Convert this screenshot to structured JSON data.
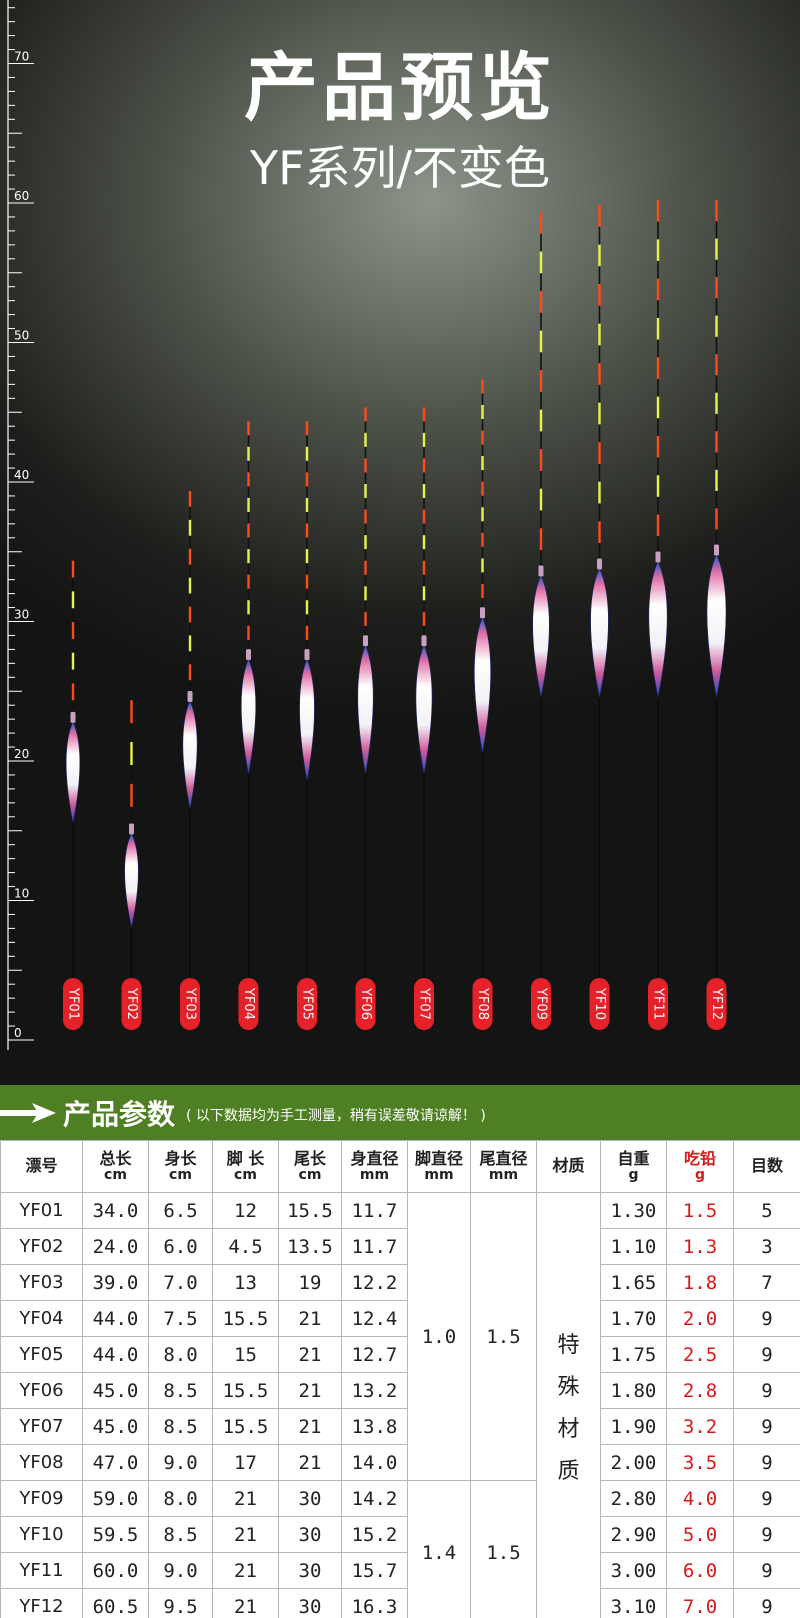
{
  "preview": {
    "title": "产品预览",
    "subtitle": "YF系列/不变色",
    "ruler_labels": [
      "0",
      "10",
      "20",
      "30",
      "40",
      "50",
      "60",
      "70"
    ],
    "floats": [
      {
        "code": "YF01",
        "total_cm": 34.0
      },
      {
        "code": "YF02",
        "total_cm": 24.0
      },
      {
        "code": "YF03",
        "total_cm": 39.0
      },
      {
        "code": "YF04",
        "total_cm": 44.0
      },
      {
        "code": "YF05",
        "total_cm": 44.0
      },
      {
        "code": "YF06",
        "total_cm": 45.0
      },
      {
        "code": "YF07",
        "total_cm": 45.0
      },
      {
        "code": "YF08",
        "total_cm": 47.0
      },
      {
        "code": "YF09",
        "total_cm": 59.0
      },
      {
        "code": "YF10",
        "total_cm": 59.5
      },
      {
        "code": "YF11",
        "total_cm": 60.0
      },
      {
        "code": "YF12",
        "total_cm": 60.5
      }
    ],
    "colors": {
      "tip_red": "#ff4a1c",
      "tip_yellow": "#e6f34a",
      "tag_red": "#e5212a",
      "body_blue": "#2b56c8",
      "body_pink": "#e06fa6"
    }
  },
  "banner": {
    "title": "产品参数",
    "note": "( 以下数据均为手工测量，稍有误差敬请谅解！ )",
    "color": "#4e7f22"
  },
  "table": {
    "headers": [
      {
        "name": "漂号",
        "unit": ""
      },
      {
        "name": "总长",
        "unit": "cm"
      },
      {
        "name": "身长",
        "unit": "cm"
      },
      {
        "name": "脚 长",
        "unit": "cm"
      },
      {
        "name": "尾长",
        "unit": "cm"
      },
      {
        "name": "身直径",
        "unit": "mm"
      },
      {
        "name": "脚直径",
        "unit": "mm"
      },
      {
        "name": "尾直径",
        "unit": "mm"
      },
      {
        "name": "材质",
        "unit": ""
      },
      {
        "name": "自重",
        "unit": "g"
      },
      {
        "name": "吃铅",
        "unit": "g"
      },
      {
        "name": "目数",
        "unit": ""
      }
    ],
    "rows": [
      {
        "code": "YF01",
        "total": "34.0",
        "body": "6.5",
        "foot": "12",
        "tail": "15.5",
        "body_dia": "11.7",
        "weight": "1.30",
        "lead": "1.5",
        "segments": "5"
      },
      {
        "code": "YF02",
        "total": "24.0",
        "body": "6.0",
        "foot": "4.5",
        "tail": "13.5",
        "body_dia": "11.7",
        "weight": "1.10",
        "lead": "1.3",
        "segments": "3"
      },
      {
        "code": "YF03",
        "total": "39.0",
        "body": "7.0",
        "foot": "13",
        "tail": "19",
        "body_dia": "12.2",
        "weight": "1.65",
        "lead": "1.8",
        "segments": "7"
      },
      {
        "code": "YF04",
        "total": "44.0",
        "body": "7.5",
        "foot": "15.5",
        "tail": "21",
        "body_dia": "12.4",
        "weight": "1.70",
        "lead": "2.0",
        "segments": "9"
      },
      {
        "code": "YF05",
        "total": "44.0",
        "body": "8.0",
        "foot": "15",
        "tail": "21",
        "body_dia": "12.7",
        "weight": "1.75",
        "lead": "2.5",
        "segments": "9"
      },
      {
        "code": "YF06",
        "total": "45.0",
        "body": "8.5",
        "foot": "15.5",
        "tail": "21",
        "body_dia": "13.2",
        "weight": "1.80",
        "lead": "2.8",
        "segments": "9"
      },
      {
        "code": "YF07",
        "total": "45.0",
        "body": "8.5",
        "foot": "15.5",
        "tail": "21",
        "body_dia": "13.8",
        "weight": "1.90",
        "lead": "3.2",
        "segments": "9"
      },
      {
        "code": "YF08",
        "total": "47.0",
        "body": "9.0",
        "foot": "17",
        "tail": "21",
        "body_dia": "14.0",
        "weight": "2.00",
        "lead": "3.5",
        "segments": "9"
      },
      {
        "code": "YF09",
        "total": "59.0",
        "body": "8.0",
        "foot": "21",
        "tail": "30",
        "body_dia": "14.2",
        "weight": "2.80",
        "lead": "4.0",
        "segments": "9"
      },
      {
        "code": "YF10",
        "total": "59.5",
        "body": "8.5",
        "foot": "21",
        "tail": "30",
        "body_dia": "15.2",
        "weight": "2.90",
        "lead": "5.0",
        "segments": "9"
      },
      {
        "code": "YF11",
        "total": "60.0",
        "body": "9.0",
        "foot": "21",
        "tail": "30",
        "body_dia": "15.7",
        "weight": "3.00",
        "lead": "6.0",
        "segments": "9"
      },
      {
        "code": "YF12",
        "total": "60.5",
        "body": "9.5",
        "foot": "21",
        "tail": "30",
        "body_dia": "16.3",
        "weight": "3.10",
        "lead": "7.0",
        "segments": "9"
      }
    ],
    "group_a": {
      "foot_dia": "1.0",
      "tail_dia": "1.5"
    },
    "group_b": {
      "foot_dia": "1.4",
      "tail_dia": "1.5"
    },
    "material": [
      "特",
      "殊",
      "材",
      "质"
    ],
    "lead_color": "#d61a1a"
  }
}
